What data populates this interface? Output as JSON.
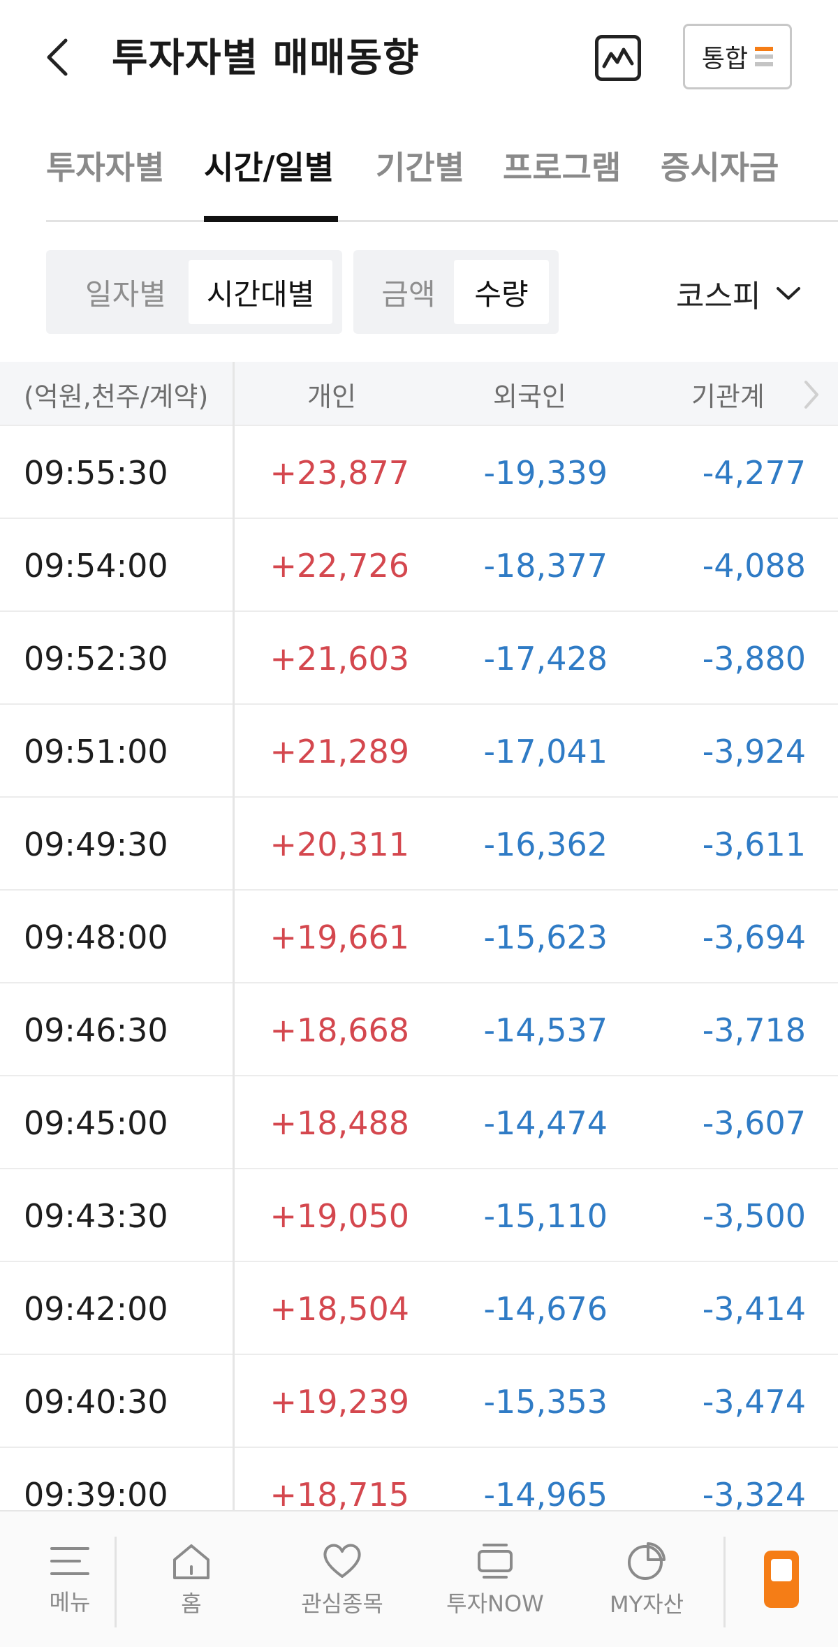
{
  "header": {
    "title": "투자자별 매매동향",
    "unified_label": "통합",
    "unified_bar_colors": [
      "#f57d16",
      "#c4c4c4",
      "#c4c4c4"
    ]
  },
  "tabs": [
    {
      "label": "투자자별",
      "active": false
    },
    {
      "label": "시간/일별",
      "active": true
    },
    {
      "label": "기간별",
      "active": false
    },
    {
      "label": "프로그램",
      "active": false
    },
    {
      "label": "증시자금",
      "active": false
    }
  ],
  "filters": {
    "period": {
      "options": [
        "일자별",
        "시간대별"
      ],
      "selected": "시간대별"
    },
    "unit": {
      "options": [
        "금액",
        "수량"
      ],
      "selected": "수량"
    },
    "market": "코스피"
  },
  "table": {
    "headers": [
      "(억원,천주/계약)",
      "개인",
      "외국인",
      "기관계"
    ],
    "rows": [
      [
        "09:55:30",
        "+23,877",
        "-19,339",
        "-4,277"
      ],
      [
        "09:54:00",
        "+22,726",
        "-18,377",
        "-4,088"
      ],
      [
        "09:52:30",
        "+21,603",
        "-17,428",
        "-3,880"
      ],
      [
        "09:51:00",
        "+21,289",
        "-17,041",
        "-3,924"
      ],
      [
        "09:49:30",
        "+20,311",
        "-16,362",
        "-3,611"
      ],
      [
        "09:48:00",
        "+19,661",
        "-15,623",
        "-3,694"
      ],
      [
        "09:46:30",
        "+18,668",
        "-14,537",
        "-3,718"
      ],
      [
        "09:45:00",
        "+18,488",
        "-14,474",
        "-3,607"
      ],
      [
        "09:43:30",
        "+19,050",
        "-15,110",
        "-3,500"
      ],
      [
        "09:42:00",
        "+18,504",
        "-14,676",
        "-3,414"
      ],
      [
        "09:40:30",
        "+19,239",
        "-15,353",
        "-3,474"
      ],
      [
        "09:39:00",
        "+18,715",
        "-14,965",
        "-3,324"
      ]
    ]
  },
  "colors": {
    "positive": "#d4474e",
    "negative": "#2f7bc5",
    "accent": "#f57d16"
  },
  "bottom_nav": [
    {
      "label": "메뉴",
      "icon": "menu-icon"
    },
    {
      "label": "홈",
      "icon": "home-icon"
    },
    {
      "label": "관심종목",
      "icon": "heart-icon"
    },
    {
      "label": "투자NOW",
      "icon": "stack-icon"
    },
    {
      "label": "MY자산",
      "icon": "pie-chart-icon"
    },
    {
      "label": "",
      "icon": "phone-app-icon"
    }
  ]
}
